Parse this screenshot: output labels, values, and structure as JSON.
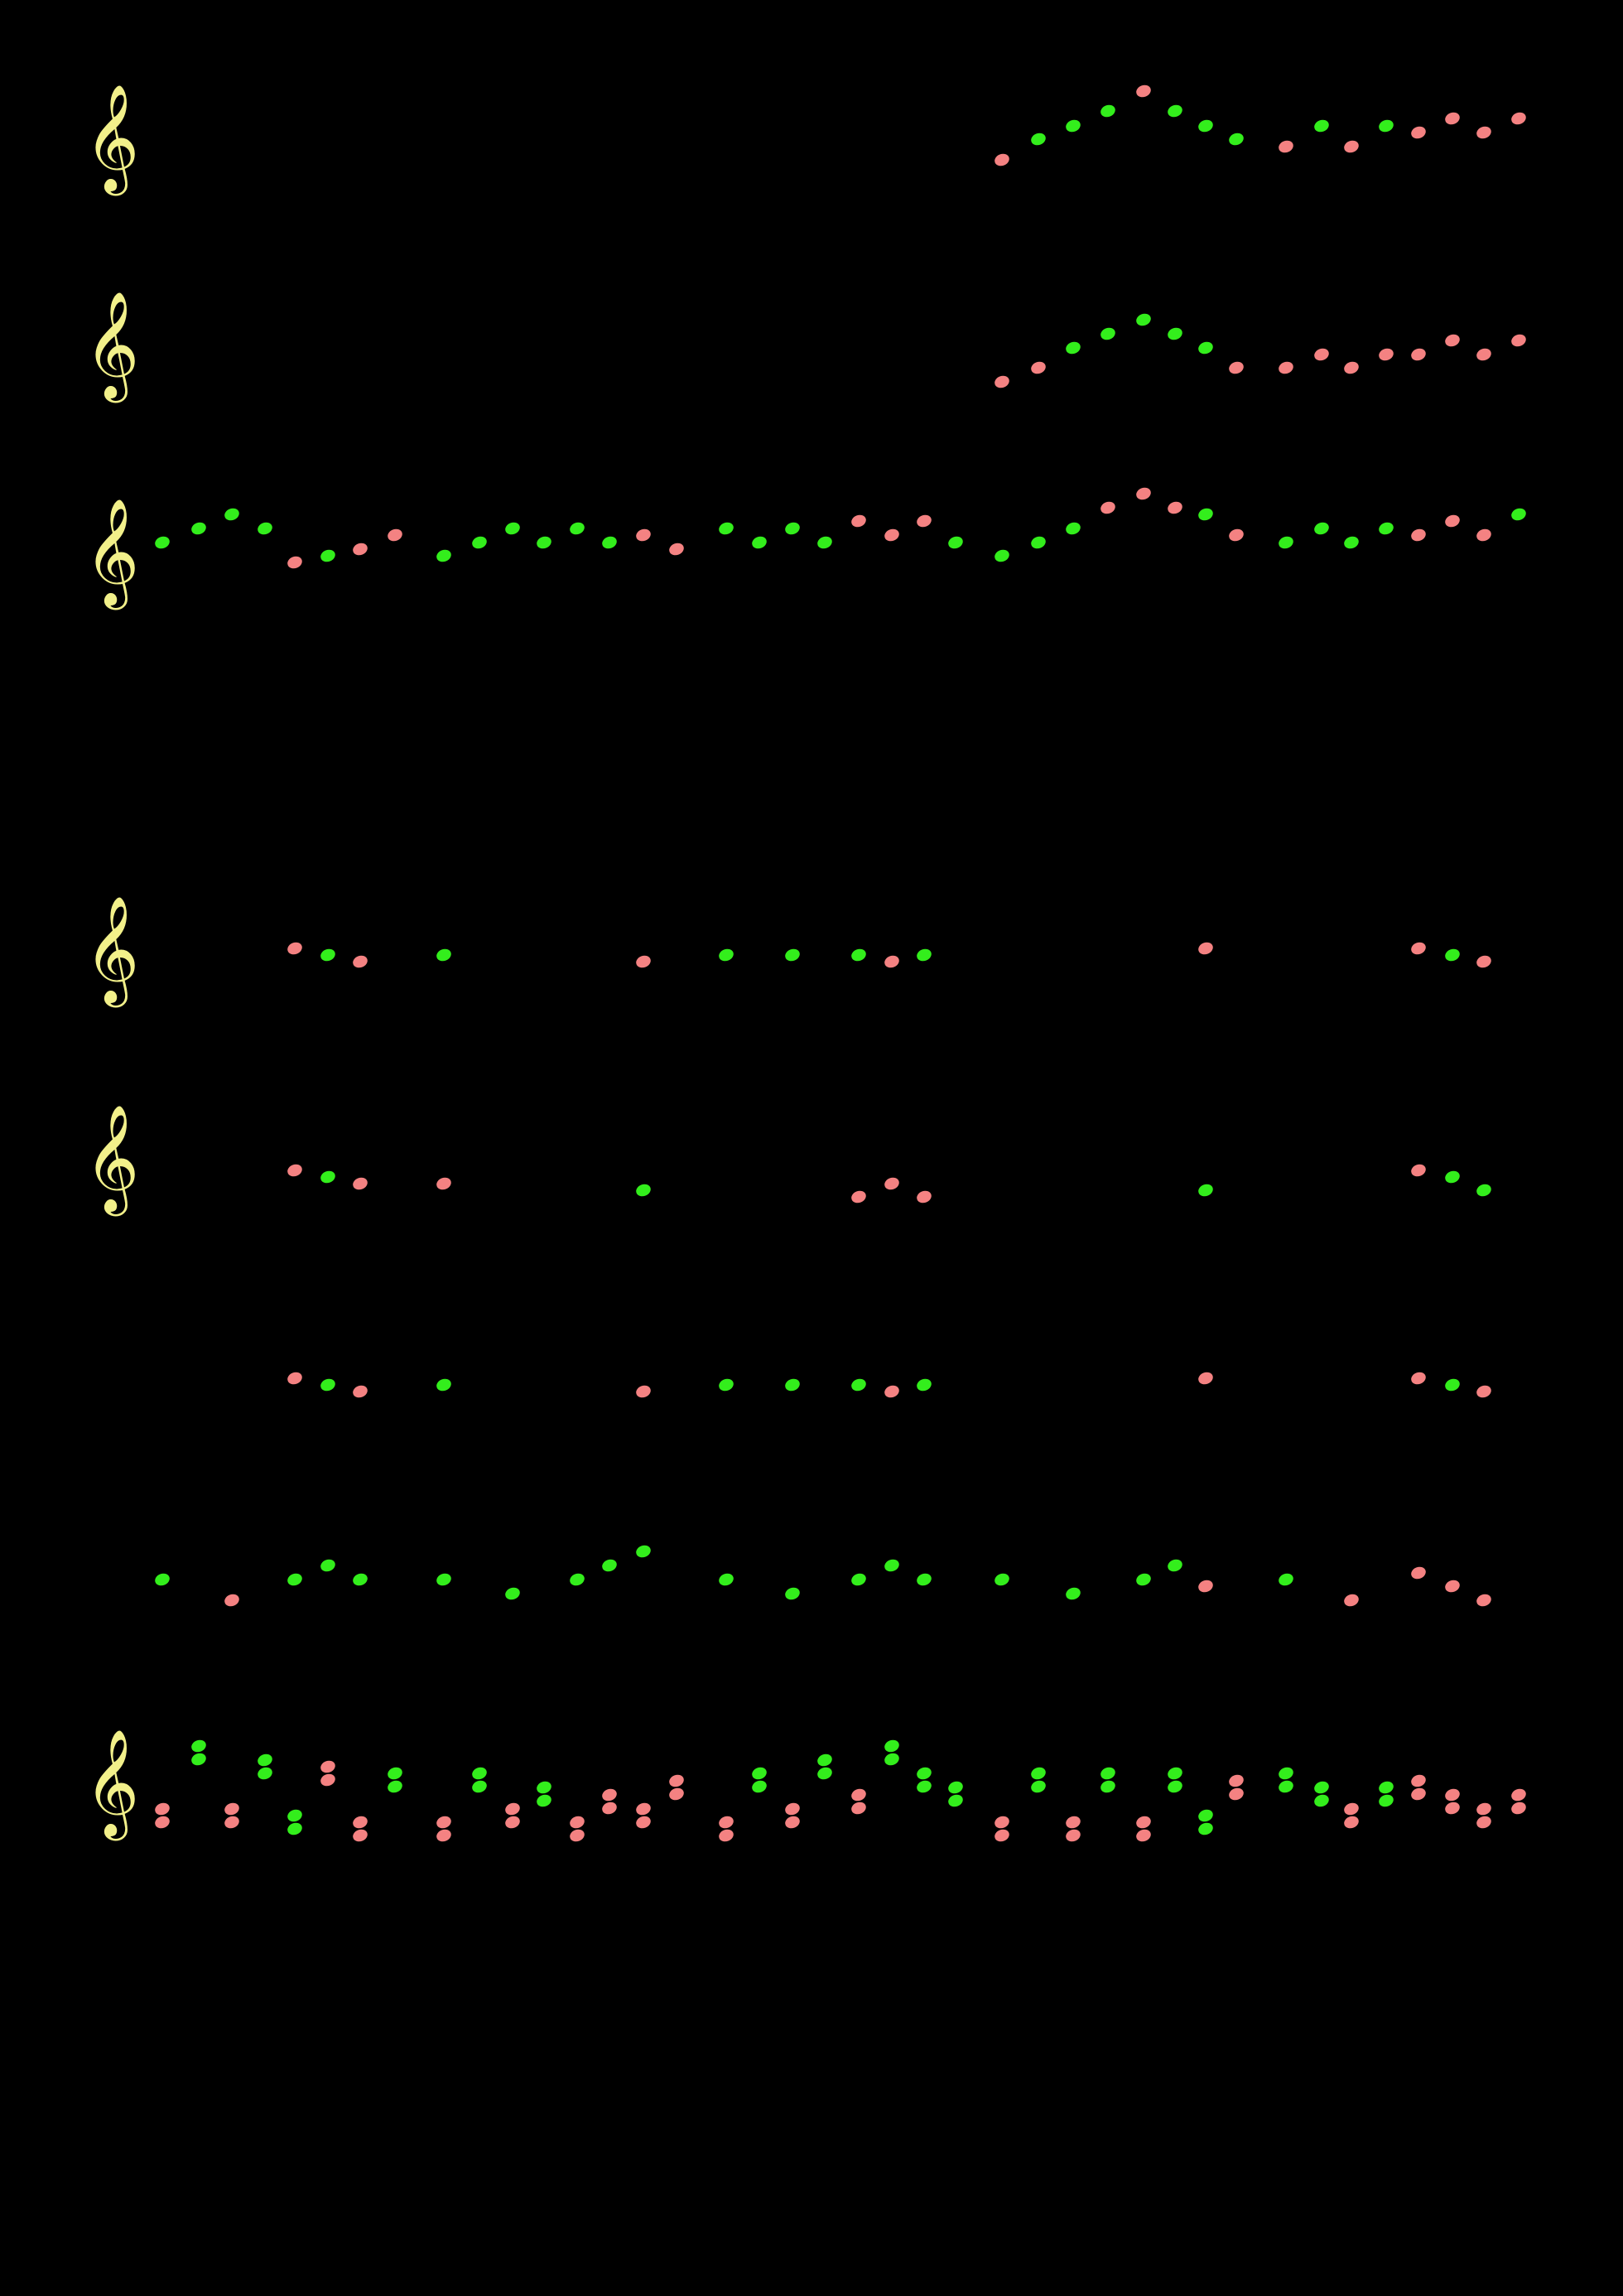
{
  "page": {
    "background": "#000000"
  },
  "colors": {
    "green": "#33ee1c",
    "pink": "#f48282",
    "clef": "#f2f08a"
  },
  "clef_glyph": "𝄞",
  "icons": {
    "clef": "treble-clef-icon",
    "note": "notehead"
  },
  "staves": [
    {
      "name": "staff-1",
      "clef": true,
      "notes": [
        [
          1210,
          193,
          "p"
        ],
        [
          1254,
          168,
          "g"
        ],
        [
          1296,
          152,
          "g"
        ],
        [
          1338,
          134,
          "g"
        ],
        [
          1381,
          110,
          "p"
        ],
        [
          1419,
          134,
          "g"
        ],
        [
          1456,
          152,
          "g"
        ],
        [
          1493,
          168,
          "g"
        ],
        [
          1553,
          177,
          "p"
        ],
        [
          1596,
          152,
          "g"
        ],
        [
          1632,
          177,
          "p"
        ],
        [
          1674,
          152,
          "g"
        ],
        [
          1713,
          160,
          "p"
        ],
        [
          1754,
          143,
          "p"
        ],
        [
          1792,
          160,
          "p"
        ],
        [
          1834,
          143,
          "p"
        ]
      ]
    },
    {
      "name": "staff-2",
      "clef": true,
      "notes": [
        [
          1210,
          461,
          "p"
        ],
        [
          1254,
          444,
          "p"
        ],
        [
          1296,
          420,
          "g"
        ],
        [
          1338,
          403,
          "g"
        ],
        [
          1381,
          386,
          "g"
        ],
        [
          1419,
          403,
          "g"
        ],
        [
          1456,
          420,
          "g"
        ],
        [
          1493,
          444,
          "p"
        ],
        [
          1553,
          444,
          "p"
        ],
        [
          1596,
          428,
          "p"
        ],
        [
          1632,
          444,
          "p"
        ],
        [
          1674,
          428,
          "p"
        ],
        [
          1713,
          428,
          "p"
        ],
        [
          1754,
          411,
          "p"
        ],
        [
          1792,
          428,
          "p"
        ],
        [
          1834,
          411,
          "p"
        ]
      ]
    },
    {
      "name": "staff-3",
      "clef": true,
      "notes": [
        [
          196,
          655,
          "g"
        ],
        [
          240,
          638,
          "g"
        ],
        [
          280,
          621,
          "g"
        ],
        [
          320,
          638,
          "g"
        ],
        [
          356,
          679,
          "p"
        ],
        [
          396,
          671,
          "g"
        ],
        [
          435,
          663,
          "p"
        ],
        [
          477,
          646,
          "p"
        ],
        [
          536,
          671,
          "g"
        ],
        [
          579,
          655,
          "g"
        ],
        [
          619,
          638,
          "g"
        ],
        [
          657,
          655,
          "g"
        ],
        [
          697,
          638,
          "g"
        ],
        [
          736,
          655,
          "g"
        ],
        [
          777,
          646,
          "p"
        ],
        [
          817,
          663,
          "p"
        ],
        [
          877,
          638,
          "g"
        ],
        [
          917,
          655,
          "g"
        ],
        [
          957,
          638,
          "g"
        ],
        [
          996,
          655,
          "g"
        ],
        [
          1037,
          629,
          "p"
        ],
        [
          1077,
          646,
          "p"
        ],
        [
          1116,
          629,
          "p"
        ],
        [
          1154,
          655,
          "g"
        ],
        [
          1210,
          671,
          "g"
        ],
        [
          1254,
          655,
          "g"
        ],
        [
          1296,
          638,
          "g"
        ],
        [
          1338,
          613,
          "p"
        ],
        [
          1381,
          596,
          "p"
        ],
        [
          1419,
          613,
          "p"
        ],
        [
          1456,
          621,
          "g"
        ],
        [
          1493,
          646,
          "p"
        ],
        [
          1553,
          655,
          "g"
        ],
        [
          1596,
          638,
          "g"
        ],
        [
          1632,
          655,
          "g"
        ],
        [
          1674,
          638,
          "g"
        ],
        [
          1713,
          646,
          "p"
        ],
        [
          1754,
          629,
          "p"
        ],
        [
          1792,
          646,
          "p"
        ],
        [
          1834,
          621,
          "g"
        ]
      ]
    },
    {
      "name": "staff-4",
      "clef": true,
      "notes": [
        [
          356,
          1145,
          "p"
        ],
        [
          396,
          1153,
          "g"
        ],
        [
          435,
          1161,
          "p"
        ],
        [
          536,
          1153,
          "g"
        ],
        [
          777,
          1161,
          "p"
        ],
        [
          877,
          1153,
          "g"
        ],
        [
          957,
          1153,
          "g"
        ],
        [
          1037,
          1153,
          "g"
        ],
        [
          1077,
          1161,
          "p"
        ],
        [
          1116,
          1153,
          "g"
        ],
        [
          1456,
          1145,
          "p"
        ],
        [
          1713,
          1145,
          "p"
        ],
        [
          1754,
          1153,
          "g"
        ],
        [
          1792,
          1161,
          "p"
        ]
      ]
    },
    {
      "name": "staff-5",
      "clef": true,
      "notes": [
        [
          356,
          1413,
          "p"
        ],
        [
          396,
          1421,
          "g"
        ],
        [
          435,
          1429,
          "p"
        ],
        [
          536,
          1429,
          "p"
        ],
        [
          777,
          1437,
          "g"
        ],
        [
          1037,
          1445,
          "p"
        ],
        [
          1077,
          1429,
          "p"
        ],
        [
          1116,
          1445,
          "p"
        ],
        [
          1456,
          1437,
          "g"
        ],
        [
          1713,
          1413,
          "p"
        ],
        [
          1754,
          1421,
          "g"
        ],
        [
          1792,
          1437,
          "g"
        ]
      ]
    },
    {
      "name": "staff-6",
      "clef": false,
      "notes": [
        [
          356,
          1664,
          "p"
        ],
        [
          396,
          1672,
          "g"
        ],
        [
          435,
          1680,
          "p"
        ],
        [
          536,
          1672,
          "g"
        ],
        [
          777,
          1680,
          "p"
        ],
        [
          877,
          1672,
          "g"
        ],
        [
          957,
          1672,
          "g"
        ],
        [
          1037,
          1672,
          "g"
        ],
        [
          1077,
          1680,
          "p"
        ],
        [
          1116,
          1672,
          "g"
        ],
        [
          1456,
          1664,
          "p"
        ],
        [
          1713,
          1664,
          "p"
        ],
        [
          1754,
          1672,
          "g"
        ],
        [
          1792,
          1680,
          "p"
        ]
      ]
    },
    {
      "name": "staff-7",
      "clef": false,
      "notes": [
        [
          196,
          1907,
          "g"
        ],
        [
          280,
          1932,
          "p"
        ],
        [
          356,
          1907,
          "g"
        ],
        [
          396,
          1890,
          "g"
        ],
        [
          435,
          1907,
          "g"
        ],
        [
          536,
          1907,
          "g"
        ],
        [
          619,
          1924,
          "g"
        ],
        [
          697,
          1907,
          "g"
        ],
        [
          736,
          1890,
          "g"
        ],
        [
          777,
          1873,
          "g"
        ],
        [
          877,
          1907,
          "g"
        ],
        [
          957,
          1924,
          "g"
        ],
        [
          1037,
          1907,
          "g"
        ],
        [
          1077,
          1890,
          "g"
        ],
        [
          1116,
          1907,
          "g"
        ],
        [
          1210,
          1907,
          "g"
        ],
        [
          1296,
          1924,
          "g"
        ],
        [
          1381,
          1907,
          "g"
        ],
        [
          1419,
          1890,
          "g"
        ],
        [
          1456,
          1915,
          "p"
        ],
        [
          1553,
          1907,
          "g"
        ],
        [
          1632,
          1932,
          "p"
        ],
        [
          1713,
          1899,
          "p"
        ],
        [
          1754,
          1915,
          "p"
        ],
        [
          1792,
          1932,
          "p"
        ]
      ]
    },
    {
      "name": "staff-8",
      "clef": true,
      "notes": [
        [
          196,
          2184,
          "p"
        ],
        [
          196,
          2200,
          "p"
        ],
        [
          240,
          2108,
          "g"
        ],
        [
          240,
          2124,
          "g"
        ],
        [
          280,
          2184,
          "p"
        ],
        [
          280,
          2200,
          "p"
        ],
        [
          320,
          2125,
          "g"
        ],
        [
          320,
          2141,
          "g"
        ],
        [
          356,
          2192,
          "g"
        ],
        [
          356,
          2208,
          "g"
        ],
        [
          396,
          2133,
          "p"
        ],
        [
          396,
          2149,
          "p"
        ],
        [
          435,
          2200,
          "p"
        ],
        [
          435,
          2216,
          "p"
        ],
        [
          477,
          2141,
          "g"
        ],
        [
          477,
          2157,
          "g"
        ],
        [
          536,
          2200,
          "p"
        ],
        [
          536,
          2216,
          "p"
        ],
        [
          579,
          2141,
          "g"
        ],
        [
          579,
          2157,
          "g"
        ],
        [
          619,
          2184,
          "p"
        ],
        [
          619,
          2200,
          "p"
        ],
        [
          657,
          2158,
          "g"
        ],
        [
          657,
          2174,
          "g"
        ],
        [
          697,
          2200,
          "p"
        ],
        [
          697,
          2216,
          "p"
        ],
        [
          736,
          2167,
          "p"
        ],
        [
          736,
          2183,
          "p"
        ],
        [
          777,
          2184,
          "p"
        ],
        [
          777,
          2200,
          "p"
        ],
        [
          817,
          2150,
          "p"
        ],
        [
          817,
          2166,
          "p"
        ],
        [
          877,
          2200,
          "p"
        ],
        [
          877,
          2216,
          "p"
        ],
        [
          917,
          2141,
          "g"
        ],
        [
          917,
          2157,
          "g"
        ],
        [
          957,
          2184,
          "p"
        ],
        [
          957,
          2200,
          "p"
        ],
        [
          996,
          2125,
          "g"
        ],
        [
          996,
          2141,
          "g"
        ],
        [
          1037,
          2167,
          "p"
        ],
        [
          1037,
          2183,
          "p"
        ],
        [
          1077,
          2108,
          "g"
        ],
        [
          1077,
          2124,
          "g"
        ],
        [
          1116,
          2141,
          "g"
        ],
        [
          1116,
          2157,
          "g"
        ],
        [
          1154,
          2158,
          "g"
        ],
        [
          1154,
          2174,
          "g"
        ],
        [
          1210,
          2200,
          "p"
        ],
        [
          1210,
          2216,
          "p"
        ],
        [
          1254,
          2141,
          "g"
        ],
        [
          1254,
          2157,
          "g"
        ],
        [
          1296,
          2200,
          "p"
        ],
        [
          1296,
          2216,
          "p"
        ],
        [
          1338,
          2141,
          "g"
        ],
        [
          1338,
          2157,
          "g"
        ],
        [
          1381,
          2200,
          "p"
        ],
        [
          1381,
          2216,
          "p"
        ],
        [
          1419,
          2141,
          "g"
        ],
        [
          1419,
          2157,
          "g"
        ],
        [
          1456,
          2192,
          "g"
        ],
        [
          1456,
          2208,
          "g"
        ],
        [
          1493,
          2150,
          "p"
        ],
        [
          1493,
          2166,
          "p"
        ],
        [
          1553,
          2141,
          "g"
        ],
        [
          1553,
          2157,
          "g"
        ],
        [
          1596,
          2158,
          "g"
        ],
        [
          1596,
          2174,
          "g"
        ],
        [
          1632,
          2184,
          "p"
        ],
        [
          1632,
          2200,
          "p"
        ],
        [
          1674,
          2158,
          "g"
        ],
        [
          1674,
          2174,
          "g"
        ],
        [
          1713,
          2150,
          "p"
        ],
        [
          1713,
          2166,
          "p"
        ],
        [
          1754,
          2167,
          "p"
        ],
        [
          1754,
          2183,
          "p"
        ],
        [
          1792,
          2184,
          "p"
        ],
        [
          1792,
          2200,
          "p"
        ],
        [
          1834,
          2167,
          "p"
        ],
        [
          1834,
          2183,
          "p"
        ]
      ]
    }
  ]
}
